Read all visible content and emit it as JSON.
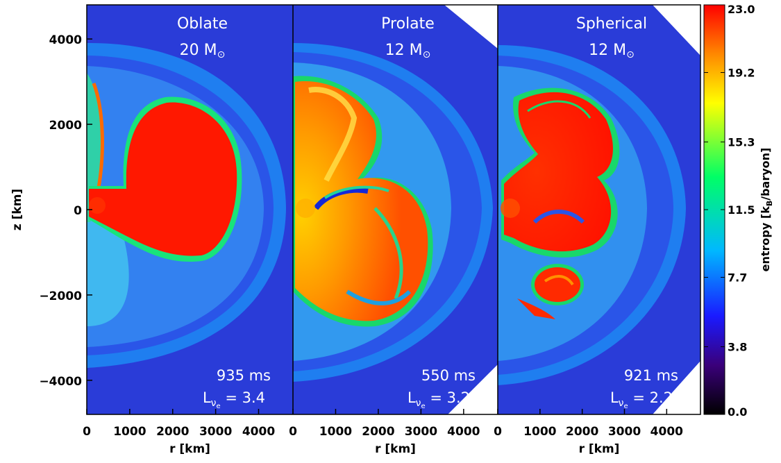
{
  "chart_data": {
    "type": "heatmap",
    "panels": [
      {
        "title": "Oblate",
        "mass_value": "20",
        "mass_unit": "M",
        "mass_sub": "⊙",
        "time": "935 ms",
        "lum_symbol": "L",
        "lum_sub": "ν",
        "lum_subsub": "e",
        "lum_value": "= 3.4"
      },
      {
        "title": "Prolate",
        "mass_value": "12",
        "mass_unit": "M",
        "mass_sub": "⊙",
        "time": "550 ms",
        "lum_symbol": "L",
        "lum_sub": "ν",
        "lum_subsub": "e",
        "lum_value": "= 3.2"
      },
      {
        "title": "Spherical",
        "mass_value": "12",
        "mass_unit": "M",
        "mass_sub": "⊙",
        "time": "921 ms",
        "lum_symbol": "L",
        "lum_sub": "ν",
        "lum_subsub": "e",
        "lum_value": "= 2.2"
      }
    ],
    "xlabel": "r [km]",
    "ylabel": "z [km]",
    "x_ticks": [
      "0",
      "1000",
      "2000",
      "3000",
      "4000"
    ],
    "y_ticks": [
      "4000",
      "2000",
      "0",
      "−2000",
      "−4000"
    ],
    "xlim": [
      0,
      4800
    ],
    "ylim": [
      -4800,
      4800
    ],
    "colorbar": {
      "label": "entropy [k",
      "label_sub": "B",
      "label_tail": "/baryon]",
      "ticks": [
        "23.0",
        "19.2",
        "15.3",
        "11.5",
        "7.7",
        "3.8",
        "0.0"
      ],
      "range": [
        0,
        23
      ],
      "colormap": [
        "#000000",
        "#3a007a",
        "#1a1aff",
        "#00b8ff",
        "#00ff66",
        "#ffff00",
        "#ff8800",
        "#ff0000"
      ]
    }
  }
}
